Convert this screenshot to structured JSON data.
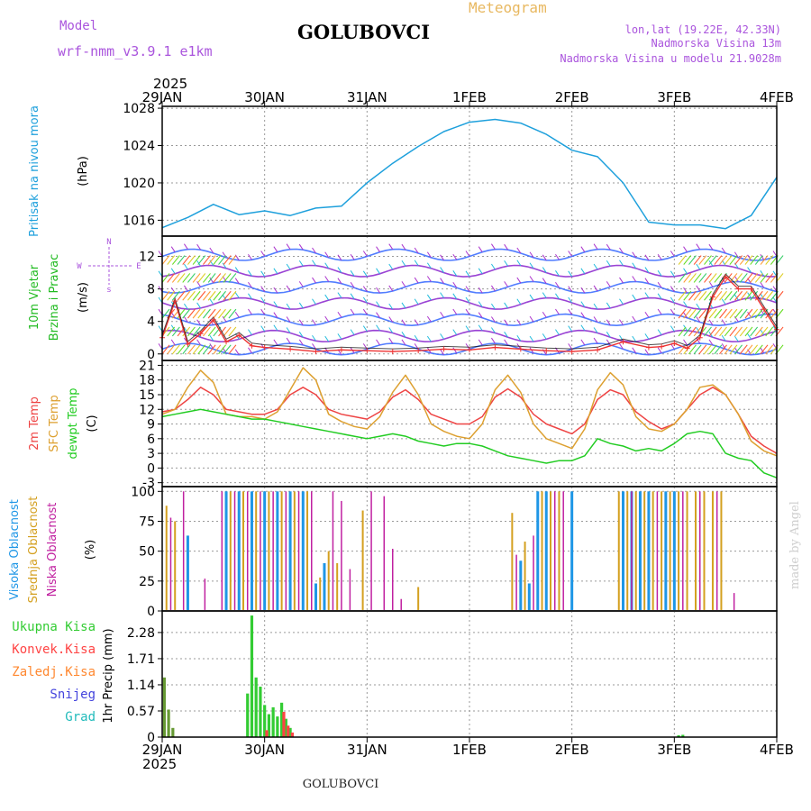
{
  "header": {
    "model_label": "Model",
    "model_name": "wrf-nmm_v3.9.1 e1km",
    "title": "GOLUBOVCI",
    "chart_kind": "Meteogram",
    "coords": "lon,lat (19.22E, 42.33N)",
    "altitude": "Nadmorska Visina 13m",
    "model_altitude": "Nadmorska Visina u modelu 21.9028m",
    "footer_title": "GOLUBOVCI",
    "credit": "made by Angel"
  },
  "colors": {
    "pressure": "#1ea0dc",
    "wind_label": "#22bb22",
    "wind_dir": "#aa55dd",
    "temp_2m": "#ee4444",
    "temp_sfc": "#dda030",
    "dewpoint": "#22cc22",
    "cloud_high": "#1e96e6",
    "cloud_mid": "#d4a020",
    "cloud_low": "#c020a0",
    "precip_total": "#33cc33",
    "precip_conv": "#ff4444",
    "precip_frz": "#ff8830",
    "precip_snow": "#4444dd",
    "precip_grad": "#22bbbb"
  },
  "chart_data": [
    {
      "type": "line",
      "panel": "pressure",
      "ylabel": [
        "Pritisak na nivou mora",
        "(hPa)"
      ],
      "yticks": [
        1016,
        1020,
        1024,
        1028
      ],
      "ylim": [
        1014.3,
        1028.2
      ],
      "x_hours": [
        0,
        6,
        12,
        18,
        24,
        30,
        36,
        42,
        48,
        54,
        60,
        66,
        72,
        78,
        84,
        90,
        96,
        102,
        108,
        114,
        120,
        126,
        132,
        138,
        144
      ],
      "series": [
        {
          "values": [
            1015.2,
            1016.3,
            1017.7,
            1016.6,
            1017.0,
            1016.5,
            1017.3,
            1017.5,
            1020.0,
            1022.1,
            1023.9,
            1025.5,
            1026.5,
            1026.8,
            1026.4,
            1025.2,
            1023.5,
            1022.8,
            1020.0,
            1015.8,
            1015.5,
            1015.5,
            1015.1,
            1016.5,
            1020.6
          ]
        }
      ],
      "grid": true
    },
    {
      "type": "line",
      "panel": "wind",
      "ylabel": [
        "10m Vjetar",
        "Brzina i Pravac",
        "(m/s)"
      ],
      "direction_key": {
        "north": "N",
        "west": "W",
        "east": "E",
        "south": "s"
      },
      "yticks": [
        0,
        4,
        8,
        12
      ],
      "ylim": [
        -0.8,
        14.5
      ],
      "x_hours": [
        0,
        3,
        6,
        9,
        12,
        15,
        18,
        21,
        24,
        30,
        36,
        42,
        48,
        54,
        60,
        66,
        72,
        78,
        84,
        90,
        96,
        102,
        108,
        114,
        117,
        120,
        123,
        126,
        129,
        132,
        135,
        138,
        141,
        144
      ],
      "series": [
        {
          "name": "",
          "values": [
            2.0,
            6.5,
            1.2,
            2.5,
            4.2,
            1.5,
            2.3,
            1.0,
            0.8,
            0.6,
            0.3,
            0.5,
            0.4,
            0.3,
            0.4,
            0.6,
            0.5,
            0.8,
            0.6,
            0.4,
            0.3,
            0.5,
            1.5,
            0.8,
            0.9,
            1.3,
            0.7,
            2.0,
            7.0,
            9.5,
            8.0,
            8.0,
            5.5,
            3.0
          ]
        }
      ],
      "grid": true
    },
    {
      "type": "line",
      "panel": "temperature",
      "ylabel": [
        "2m Temp",
        "SFC Temp",
        "dewpt Temp",
        "(C)"
      ],
      "yticks": [
        -3,
        0,
        3,
        6,
        9,
        12,
        15,
        18,
        21
      ],
      "ylim": [
        -3.8,
        22.0
      ],
      "x_hours": [
        0,
        3,
        6,
        9,
        12,
        15,
        18,
        21,
        24,
        27,
        30,
        33,
        36,
        39,
        42,
        45,
        48,
        51,
        54,
        57,
        60,
        63,
        66,
        69,
        72,
        75,
        78,
        81,
        84,
        87,
        90,
        93,
        96,
        99,
        102,
        105,
        108,
        111,
        114,
        117,
        120,
        123,
        126,
        129,
        132,
        135,
        138,
        141,
        144
      ],
      "series": [
        {
          "name": "2m Temp",
          "values": [
            11.5,
            12.0,
            14.0,
            16.5,
            15.0,
            12.0,
            11.5,
            11.0,
            11.0,
            12.0,
            15.0,
            16.5,
            15.0,
            12.0,
            11.0,
            10.5,
            10.0,
            11.5,
            14.5,
            16.0,
            14.0,
            11.0,
            10.0,
            9.0,
            9.0,
            10.5,
            14.5,
            16.2,
            14.5,
            11.0,
            9.0,
            8.0,
            7.0,
            9.0,
            14.0,
            16.0,
            15.0,
            11.5,
            9.5,
            8.0,
            9.0,
            12.0,
            15.0,
            16.5,
            15.0,
            11.0,
            6.5,
            4.5,
            3.0
          ]
        },
        {
          "name": "SFC Temp",
          "values": [
            11.0,
            12.0,
            16.5,
            20.0,
            17.5,
            11.0,
            10.5,
            10.5,
            10.0,
            11.5,
            16.0,
            20.5,
            18.0,
            11.0,
            9.5,
            8.5,
            8.0,
            10.5,
            15.5,
            19.0,
            15.0,
            9.0,
            7.5,
            6.5,
            6.0,
            9.0,
            16.0,
            19.0,
            15.5,
            9.0,
            6.0,
            5.0,
            4.0,
            8.0,
            16.0,
            19.5,
            17.0,
            10.5,
            8.0,
            7.5,
            9.0,
            12.0,
            16.5,
            17.0,
            15.0,
            11.0,
            5.5,
            3.5,
            2.5
          ]
        },
        {
          "name": "dewpt Temp",
          "values": [
            10.5,
            11.0,
            11.5,
            12.0,
            11.5,
            11.0,
            10.5,
            10.0,
            10.0,
            9.5,
            9.0,
            8.5,
            8.0,
            7.5,
            7.0,
            6.5,
            6.0,
            6.5,
            7.0,
            6.5,
            5.5,
            5.0,
            4.5,
            5.0,
            5.0,
            4.5,
            3.5,
            2.5,
            2.0,
            1.5,
            1.0,
            1.5,
            1.5,
            2.5,
            6.0,
            5.0,
            4.5,
            3.5,
            4.0,
            3.5,
            5.0,
            7.0,
            7.5,
            7.0,
            3.0,
            2.0,
            1.5,
            -1.0,
            -2.0
          ]
        }
      ],
      "grid": true
    },
    {
      "type": "bar",
      "panel": "clouds",
      "ylabel": [
        "Visoka Oblacnost",
        "Srednja Oblacnost",
        "Niska Oblacnost",
        "(%)"
      ],
      "yticks": [
        0,
        25,
        50,
        75,
        100
      ],
      "ylim": [
        0,
        104
      ],
      "series": [
        {
          "name": "Visoka Oblacnost",
          "points": [
            [
              6,
              63
            ],
            [
              12,
              0
            ],
            [
              15,
              100
            ],
            [
              18,
              100
            ],
            [
              21,
              100
            ],
            [
              24,
              100
            ],
            [
              27,
              100
            ],
            [
              30,
              100
            ],
            [
              33,
              100
            ],
            [
              36,
              23
            ],
            [
              38,
              40
            ],
            [
              84,
              42
            ],
            [
              86,
              23
            ],
            [
              88,
              100
            ],
            [
              90,
              100
            ],
            [
              96,
              100
            ],
            [
              108,
              100
            ],
            [
              110,
              100
            ],
            [
              112,
              100
            ],
            [
              114,
              100
            ],
            [
              118,
              100
            ],
            [
              120,
              100
            ]
          ]
        },
        {
          "name": "Srednja Oblacnost",
          "points": [
            [
              1,
              88
            ],
            [
              3,
              75
            ],
            [
              16,
              100
            ],
            [
              19,
              100
            ],
            [
              22,
              100
            ],
            [
              25,
              100
            ],
            [
              28,
              100
            ],
            [
              31,
              100
            ],
            [
              34,
              100
            ],
            [
              37,
              28
            ],
            [
              39,
              50
            ],
            [
              41,
              40
            ],
            [
              47,
              84
            ],
            [
              60,
              20
            ],
            [
              82,
              82
            ],
            [
              85,
              58
            ],
            [
              89,
              100
            ],
            [
              91,
              100
            ],
            [
              93,
              100
            ],
            [
              107,
              100
            ],
            [
              109,
              100
            ],
            [
              111,
              100
            ],
            [
              113,
              100
            ],
            [
              115,
              100
            ],
            [
              117,
              100
            ],
            [
              119,
              100
            ],
            [
              121,
              100
            ],
            [
              123,
              100
            ],
            [
              125,
              100
            ],
            [
              127,
              100
            ],
            [
              129,
              100
            ],
            [
              131,
              100
            ]
          ]
        },
        {
          "name": "Niska Oblacnost",
          "points": [
            [
              2,
              78
            ],
            [
              5,
              100
            ],
            [
              10,
              27
            ],
            [
              14,
              100
            ],
            [
              17,
              100
            ],
            [
              20,
              100
            ],
            [
              23,
              100
            ],
            [
              26,
              100
            ],
            [
              29,
              100
            ],
            [
              32,
              100
            ],
            [
              35,
              100
            ],
            [
              40,
              100
            ],
            [
              42,
              92
            ],
            [
              44,
              35
            ],
            [
              49,
              100
            ],
            [
              52,
              96
            ],
            [
              54,
              52
            ],
            [
              56,
              10
            ],
            [
              83,
              47
            ],
            [
              87,
              63
            ],
            [
              92,
              100
            ],
            [
              94,
              100
            ],
            [
              110,
              100
            ],
            [
              116,
              100
            ],
            [
              122,
              100
            ],
            [
              126,
              100
            ],
            [
              130,
              100
            ],
            [
              134,
              15
            ]
          ]
        }
      ],
      "grid": true
    },
    {
      "type": "bar",
      "panel": "precipitation",
      "ylabel": [
        "1hr Precip (mm)"
      ],
      "yticks": [
        0,
        0.57,
        1.14,
        1.71,
        2.28
      ],
      "ylim": [
        0,
        2.75
      ],
      "legend": [
        {
          "name": "Ukupna Kisa",
          "color_key": "precip_total"
        },
        {
          "name": "Konvek.Kisa",
          "color_key": "precip_conv"
        },
        {
          "name": "Zaledj.Kisa",
          "color_key": "precip_frz"
        },
        {
          "name": "Snijeg",
          "color_key": "precip_snow"
        },
        {
          "name": "Grad",
          "color_key": "precip_grad"
        }
      ],
      "series": [
        {
          "name": "Ukupna Kisa",
          "points": [
            [
              0.5,
              1.3
            ],
            [
              1.5,
              0.6
            ],
            [
              2.5,
              0.2
            ],
            [
              20,
              0.95
            ],
            [
              21,
              2.65
            ],
            [
              22,
              1.3
            ],
            [
              23,
              1.1
            ],
            [
              24,
              0.7
            ],
            [
              25,
              0.5
            ],
            [
              26,
              0.65
            ],
            [
              27,
              0.45
            ],
            [
              28,
              0.75
            ],
            [
              29,
              0.4
            ],
            [
              30,
              0.2
            ],
            [
              121,
              0.04
            ],
            [
              122,
              0.05
            ]
          ]
        },
        {
          "name": "Konvek.Kisa",
          "points": [
            [
              24.5,
              0.15
            ],
            [
              28.5,
              0.55
            ],
            [
              29.5,
              0.25
            ],
            [
              30.5,
              0.1
            ]
          ]
        }
      ],
      "grid": true
    }
  ],
  "x_axis": {
    "hours_total": 144,
    "year_top": "2025",
    "year_bottom": "2025",
    "ticks": [
      {
        "hour": 0,
        "label": "29JAN"
      },
      {
        "hour": 24,
        "label": "30JAN"
      },
      {
        "hour": 48,
        "label": "31JAN"
      },
      {
        "hour": 72,
        "label": "1FEB"
      },
      {
        "hour": 96,
        "label": "2FEB"
      },
      {
        "hour": 120,
        "label": "3FEB"
      },
      {
        "hour": 144,
        "label": "4FEB"
      }
    ]
  }
}
